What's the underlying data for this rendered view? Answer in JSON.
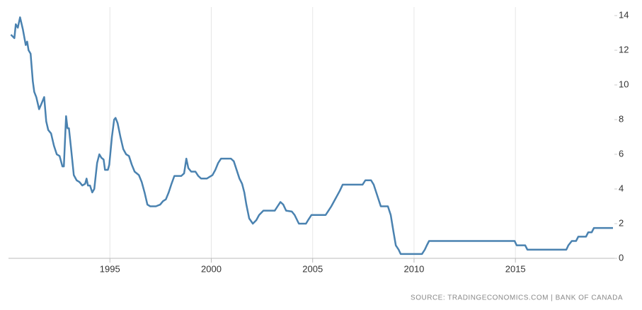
{
  "chart_data": {
    "type": "line",
    "source": "SOURCE: TRADINGECONOMICS.COM | BANK OF CANADA",
    "x": [
      1990.12,
      1990.29,
      1990.36,
      1990.46,
      1990.57,
      1990.71,
      1990.85,
      1990.92,
      1990.99,
      1991.09,
      1991.2,
      1991.27,
      1991.37,
      1991.51,
      1991.62,
      1991.76,
      1991.86,
      1991.96,
      1992.1,
      1992.24,
      1992.38,
      1992.52,
      1992.66,
      1992.73,
      1992.84,
      1992.91,
      1992.98,
      1993.08,
      1993.22,
      1993.36,
      1993.5,
      1993.64,
      1993.78,
      1993.85,
      1993.92,
      1994.02,
      1994.13,
      1994.23,
      1994.37,
      1994.48,
      1994.58,
      1994.69,
      1994.76,
      1994.9,
      1994.97,
      1995.1,
      1995.21,
      1995.28,
      1995.38,
      1995.52,
      1995.66,
      1995.8,
      1995.94,
      1996.08,
      1996.22,
      1996.43,
      1996.57,
      1996.71,
      1996.85,
      1996.99,
      1997.27,
      1997.48,
      1997.62,
      1997.76,
      1997.9,
      1998.04,
      1998.18,
      1998.52,
      1998.66,
      1998.77,
      1998.87,
      1999.01,
      1999.22,
      1999.36,
      1999.5,
      1999.78,
      1999.92,
      2000.06,
      2000.2,
      2000.34,
      2000.48,
      2000.97,
      2001.11,
      2001.25,
      2001.39,
      2001.52,
      2001.63,
      2001.73,
      2001.87,
      2002.05,
      2002.22,
      2002.36,
      2002.57,
      2003.13,
      2003.27,
      2003.41,
      2003.55,
      2003.69,
      2003.97,
      2004.11,
      2004.32,
      2004.67,
      2004.8,
      2004.94,
      2005.64,
      2005.78,
      2005.92,
      2006.06,
      2006.2,
      2006.34,
      2006.48,
      2007.46,
      2007.6,
      2007.88,
      2008.01,
      2008.15,
      2008.36,
      2008.71,
      2008.85,
      2008.99,
      2009.1,
      2009.24,
      2009.34,
      2010.39,
      2010.53,
      2010.63,
      2010.74,
      2014.96,
      2015.06,
      2015.48,
      2015.59,
      2017.51,
      2017.61,
      2017.78,
      2017.99,
      2018.1,
      2018.48,
      2018.59,
      2018.76,
      2018.87,
      2019.81
    ],
    "series": [
      {
        "color": "#4a82b0",
        "values": [
          12.9,
          12.7,
          13.5,
          13.3,
          13.9,
          13.2,
          12.3,
          12.5,
          12.0,
          11.8,
          10.2,
          9.6,
          9.3,
          8.6,
          8.9,
          9.3,
          7.9,
          7.4,
          7.2,
          6.5,
          6.0,
          5.9,
          5.3,
          5.3,
          8.2,
          7.5,
          7.5,
          6.4,
          4.8,
          4.5,
          4.4,
          4.2,
          4.3,
          4.6,
          4.2,
          4.2,
          3.8,
          4.0,
          5.5,
          6.0,
          5.8,
          5.7,
          5.1,
          5.1,
          5.4,
          7.0,
          8.0,
          8.1,
          7.8,
          7.0,
          6.3,
          6.0,
          5.9,
          5.4,
          5.0,
          4.8,
          4.4,
          3.8,
          3.1,
          3.0,
          3.0,
          3.1,
          3.3,
          3.4,
          3.8,
          4.3,
          4.75,
          4.75,
          4.9,
          5.75,
          5.2,
          5.0,
          5.0,
          4.75,
          4.6,
          4.6,
          4.7,
          4.8,
          5.1,
          5.5,
          5.75,
          5.75,
          5.6,
          5.1,
          4.6,
          4.3,
          3.8,
          3.1,
          2.3,
          2.0,
          2.2,
          2.5,
          2.75,
          2.75,
          3.0,
          3.25,
          3.1,
          2.75,
          2.7,
          2.5,
          2.0,
          2.0,
          2.25,
          2.5,
          2.5,
          2.75,
          3.0,
          3.3,
          3.6,
          3.9,
          4.25,
          4.25,
          4.5,
          4.5,
          4.25,
          3.75,
          3.0,
          3.0,
          2.5,
          1.5,
          0.75,
          0.5,
          0.25,
          0.25,
          0.5,
          0.75,
          1.0,
          1.0,
          0.75,
          0.75,
          0.5,
          0.5,
          0.75,
          1.0,
          1.0,
          1.25,
          1.25,
          1.5,
          1.5,
          1.75,
          1.75
        ]
      }
    ],
    "xlim": [
      1990,
      2019.88
    ],
    "xticks": [
      1995,
      2000,
      2005,
      2010,
      2015
    ],
    "ylim": [
      0,
      14
    ],
    "yticks": [
      0,
      2,
      4,
      6,
      8,
      10,
      12,
      14
    ],
    "xgrid": true
  }
}
